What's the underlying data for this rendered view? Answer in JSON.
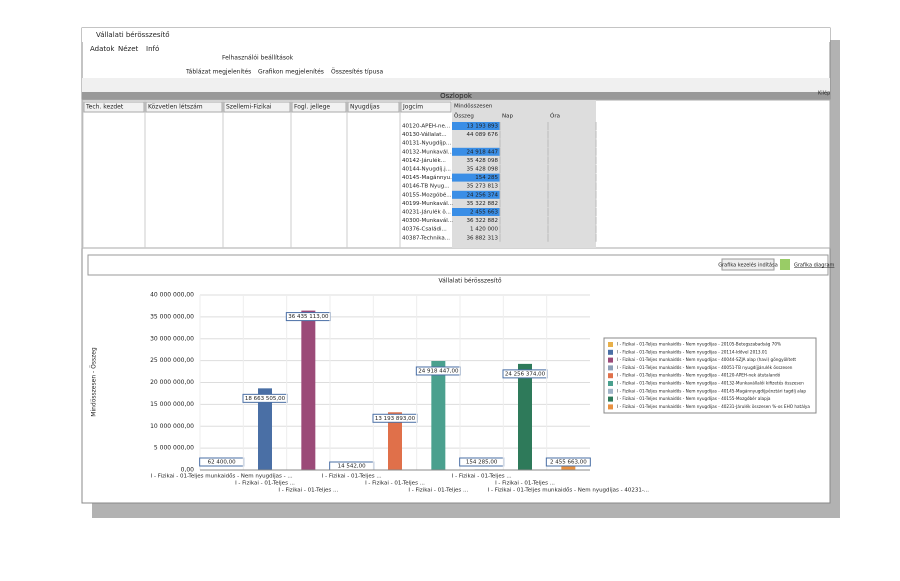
{
  "window": {
    "title": "Vállalati bérösszesítő",
    "menu": [
      "Adatok",
      "Nézet",
      "Infó"
    ],
    "toolbar": [
      "Felhasználói beállítások",
      "Táblázat megjelenítés",
      "Grafikon megjelenítés",
      "Összesítés típusa"
    ],
    "exit": "Kilép"
  },
  "pivot": {
    "title": "Oszlopok",
    "fields": [
      "Tech. kezdet",
      "Közvetlen létszám",
      "Szellemi-Fizikai",
      "Fogl. jellege",
      "Nyugdíjas",
      "Jogcím"
    ],
    "data_header": "Mindösszesen",
    "columns": [
      "Összeg",
      "Nap",
      "Óra"
    ],
    "rows": [
      {
        "label": "40120-APEH-ne...",
        "value": "13 193 893",
        "selected": true
      },
      {
        "label": "40130-Vállalat...",
        "value": "44 089 676",
        "selected": false
      },
      {
        "label": "40131-Nyugdíjp...",
        "value": null,
        "selected": false
      },
      {
        "label": "40132-Munkavál...",
        "value": "24 918 447",
        "selected": true
      },
      {
        "label": "40142-Járulék...",
        "value": "35 428 098",
        "selected": false
      },
      {
        "label": "40144-Nyugdíj.j...",
        "value": "35 428 098",
        "selected": false
      },
      {
        "label": "40145-Magánnyu...",
        "value": "154 285",
        "selected": true
      },
      {
        "label": "40146-TB Nyug...",
        "value": "35 273 813",
        "selected": false
      },
      {
        "label": "40155-Mozgóbé...",
        "value": "24 256 374",
        "selected": true
      },
      {
        "label": "40199-Munkavál...",
        "value": "35 322 882",
        "selected": false
      },
      {
        "label": "40231-Járulék ö...",
        "value": "2 455 663",
        "selected": true
      },
      {
        "label": "40300-Munkavál...",
        "value": "36 322 882",
        "selected": false
      },
      {
        "label": "40376-Családi...",
        "value": "1 420 000",
        "selected": false
      },
      {
        "label": "40387-Technika...",
        "value": "36 882 313",
        "selected": false
      }
    ]
  },
  "chart_panel": {
    "button": "Grafika kezelés indítása",
    "link": "Grafika diagram"
  },
  "chart_data": {
    "type": "bar",
    "title": "Vállalati bérösszesítő",
    "y_label": "Mindösszesen - Összeg",
    "ylim": [
      0,
      40000000
    ],
    "yticks": [
      {
        "value": 0,
        "label": "0,00"
      },
      {
        "value": 5000000,
        "label": "5 000 000,00"
      },
      {
        "value": 10000000,
        "label": "10 000 000,00"
      },
      {
        "value": 15000000,
        "label": "15 000 000,00"
      },
      {
        "value": 20000000,
        "label": "20 000 000,00"
      },
      {
        "value": 25000000,
        "label": "25 000 000,00"
      },
      {
        "value": 30000000,
        "label": "30 000 000,00"
      },
      {
        "value": 35000000,
        "label": "35 000 000,00"
      },
      {
        "value": 40000000,
        "label": "40 000 000,00"
      }
    ],
    "grid": true,
    "x_labels": [
      "I - Fizikai - 01-Teljes munkaidős - Nem nyugdíjas - ...",
      "I - Fizikai - 01-Teljes ...",
      "I - Fizikai - 01-Teljes ...",
      "I - Fizikai - 01-Teljes ...",
      "I - Fizikai - 01-Teljes ...",
      "I - Fizikai - 01-Teljes ...",
      "I - Fizikai - 01-Teljes ...",
      "I - Fizikai - 01-Teljes ...",
      "I - Fizikai - 01-Teljes munkaidős - Nem nyugdíjas - 40231-..."
    ],
    "series": [
      {
        "name": "I - Fizikai - 01-Teljes munkaidős - Nem nyugdíjas - 20105-Betegszabadság 70%",
        "color": "#e8b04a",
        "values": [
          62400
        ],
        "value_labels": [
          "62 400,00"
        ]
      },
      {
        "name": "I - Fizikai - 01-Teljes munkaidős - Nem nyugdíjas - 20114-Idővel 2013.01",
        "color": "#4a6fa5",
        "values": [
          18663505
        ],
        "value_labels": [
          "18 663 505,00"
        ]
      },
      {
        "name": "I - Fizikai - 01-Teljes munkaidős - Nem nyugdíjas - 40044-SZJA alap (havi) göngyölített",
        "color": "#9b4a78",
        "values": [
          36435113
        ],
        "value_labels": [
          "36 435 113,00"
        ]
      },
      {
        "name": "I - Fizikai - 01-Teljes munkaidős - Nem nyugdíjas - 40051-TB nyugdíjjárulék összesen",
        "color": "#8da0b8",
        "values": [
          14542
        ],
        "value_labels": [
          "14 542,00"
        ]
      },
      {
        "name": "I - Fizikai - 01-Teljes munkaidős - Nem nyugdíjas - 40120-APEH-nek átutalandó",
        "color": "#e0704a",
        "values": [
          13193893
        ],
        "value_labels": [
          "13 193 893,00"
        ]
      },
      {
        "name": "I - Fizikai - 01-Teljes munkaidős - Nem nyugdíjas - 40132-Munkavállalói kifizetés összesen",
        "color": "#4aa08e",
        "values": [
          24918447
        ],
        "value_labels": [
          "24 918 447,00"
        ]
      },
      {
        "name": "I - Fizikai - 01-Teljes munkaidős - Nem nyugdíjas - 40145-Magánnyugdíjpénztári tagdíj alap",
        "color": "#a0b4c8",
        "values": [
          154285
        ],
        "value_labels": [
          "154 285,00"
        ]
      },
      {
        "name": "I - Fizikai - 01-Teljes munkaidős - Nem nyugdíjas - 40155-Mozgóbér alapja",
        "color": "#2e7a5a",
        "values": [
          24256374
        ],
        "value_labels": [
          "24 256 374,00"
        ]
      },
      {
        "name": "I - Fizikai - 01-Teljes munkaidős - Nem nyugdíjas - 40231-Járulék összesen %-os EHO hatálya",
        "color": "#e89040",
        "values": [
          2455663
        ],
        "value_labels": [
          "2 455 663,00"
        ]
      }
    ]
  }
}
